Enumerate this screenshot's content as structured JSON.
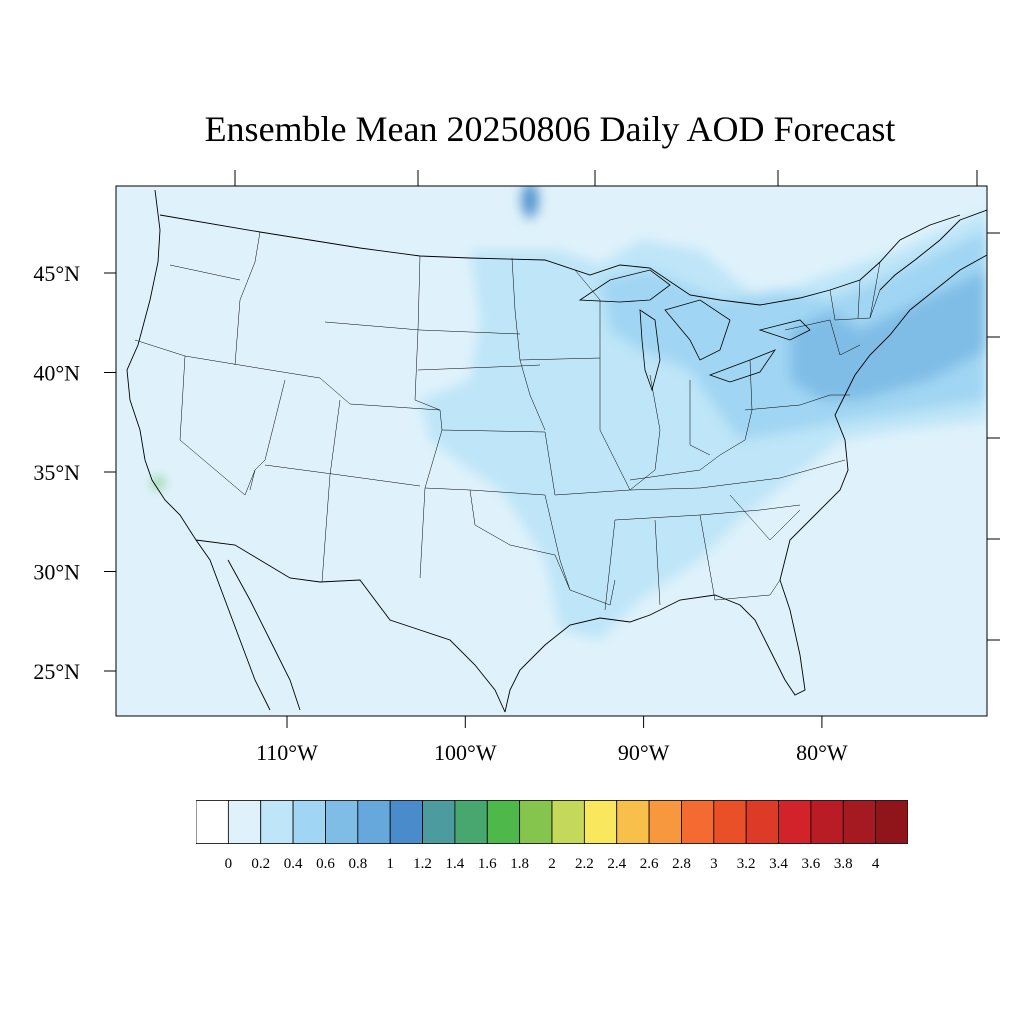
{
  "title": "Ensemble Mean 20250806 Daily AOD Forecast",
  "map": {
    "projection": "lambert-conformal",
    "lat_labels": [
      {
        "text": "45°N",
        "lat": 45
      },
      {
        "text": "40°N",
        "lat": 40
      },
      {
        "text": "35°N",
        "lat": 35
      },
      {
        "text": "30°N",
        "lat": 30
      },
      {
        "text": "25°N",
        "lat": 25
      }
    ],
    "lon_labels": [
      {
        "text": "110°W",
        "lon": -110
      },
      {
        "text": "100°W",
        "lon": -100
      },
      {
        "text": "90°W",
        "lon": -90
      },
      {
        "text": "80°W",
        "lon": -80
      }
    ],
    "background_color": "#dff2fb",
    "boundary_color": "#000000",
    "features": [
      {
        "name": "northeast-aod-plume",
        "level": 0.8,
        "color": "#80bde6"
      },
      {
        "name": "great-lakes-aod",
        "level": 0.6,
        "color": "#a0d5f3"
      },
      {
        "name": "central-plains-aod",
        "level": 0.4,
        "color": "#bee5f8"
      },
      {
        "name": "minnesota-hotspot",
        "level": 1.2,
        "color": "#4a8ccb"
      },
      {
        "name": "southern-california-hotspot",
        "level": 1.8,
        "color": "#4eb84b"
      }
    ]
  },
  "colorbar": {
    "levels": [
      "0",
      "0.2",
      "0.4",
      "0.6",
      "0.8",
      "1",
      "1.2",
      "1.4",
      "1.6",
      "1.8",
      "2",
      "2.2",
      "2.4",
      "2.6",
      "2.8",
      "3",
      "3.2",
      "3.4",
      "3.6",
      "3.8",
      "4"
    ],
    "colors": [
      "#ffffff",
      "#dff2fb",
      "#bee5f8",
      "#a0d5f3",
      "#80bde6",
      "#66a7dc",
      "#4a8ccb",
      "#4b9b9f",
      "#48a66f",
      "#4eb84b",
      "#85c54d",
      "#c4d85a",
      "#f9e75d",
      "#f8bf4b",
      "#f7973e",
      "#f36b30",
      "#ea5028",
      "#de3a28",
      "#d12329",
      "#b91c24",
      "#a51920",
      "#8f151a"
    ]
  }
}
